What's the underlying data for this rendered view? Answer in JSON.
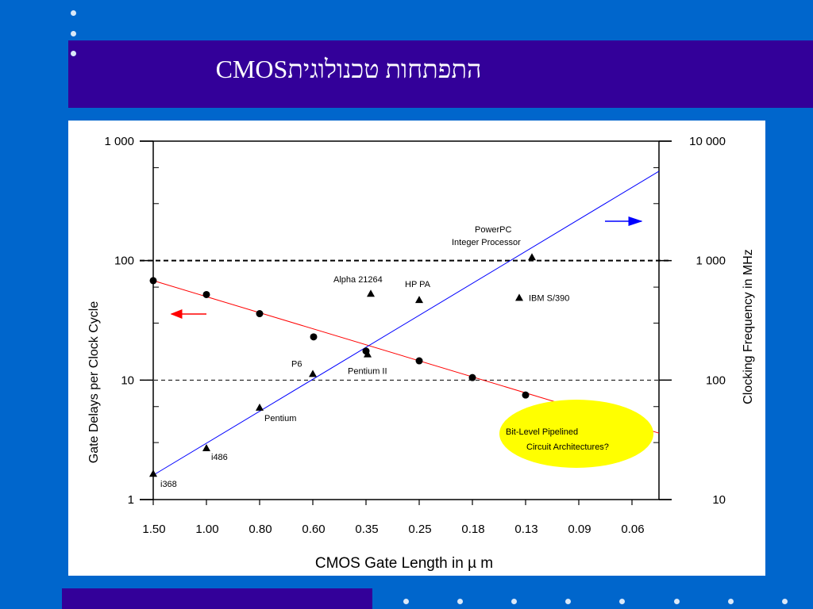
{
  "slide": {
    "title": "התפתחות טכנולוגיתCMOS",
    "colors": {
      "background": "#0066cc",
      "title_band": "#330099",
      "title_text": "#ffffff",
      "panel": "#ffffff"
    }
  },
  "chart_data": {
    "type": "scatter",
    "title": "",
    "xlabel": "CMOS Gate Length  in µ m",
    "ylabel": "Gate Delays per Clock Cycle",
    "y2label": "Clocking Frequency in MHz",
    "x_categories": [
      "1.50",
      "1.00",
      "0.80",
      "0.60",
      "0.35",
      "0.25",
      "0.18",
      "0.13",
      "0.09",
      "0.06"
    ],
    "y_scale": "log",
    "ylim": [
      1,
      1000
    ],
    "y_ticks": [
      "1",
      "10",
      "100",
      "1 000"
    ],
    "y2_scale": "log",
    "y2lim": [
      10,
      10000
    ],
    "y2_ticks": [
      "10",
      "100",
      "1 000",
      "10 000"
    ],
    "grid": false,
    "reference_lines": [
      {
        "axis": "y",
        "value": 100,
        "style": "dashed-bold"
      },
      {
        "axis": "y",
        "value": 10,
        "style": "dashed"
      }
    ],
    "series": [
      {
        "marker": "circle",
        "axis": "left",
        "color": "#000000",
        "points": [
          {
            "x": "1.50",
            "y": 68
          },
          {
            "x": "1.00",
            "y": 52
          },
          {
            "x": "0.80",
            "y": 36
          },
          {
            "x": "0.60",
            "y": 23
          },
          {
            "x": "0.35",
            "y": 17.5
          },
          {
            "x": "0.25",
            "y": 14.5
          },
          {
            "x": "0.18",
            "y": 10.5
          },
          {
            "x": "0.13",
            "y": 7.5
          }
        ]
      },
      {
        "marker": "triangle",
        "axis": "right",
        "color": "#000000",
        "points": [
          {
            "x": "1.50",
            "y": 16.5,
            "label": "i368"
          },
          {
            "x": "1.00",
            "y": 27,
            "label": "i486"
          },
          {
            "x": "0.80",
            "y": 59,
            "label": "Pentium"
          },
          {
            "x": "0.60",
            "y": 113,
            "label": "P6"
          },
          {
            "x": "0.35",
            "y": 165,
            "label": "Pentium II"
          },
          {
            "x": "0.35",
            "y": 530,
            "label": "Alpha 21264"
          },
          {
            "x": "0.25",
            "y": 470,
            "label": "HP PA"
          },
          {
            "x": "0.13",
            "y": 1070,
            "label": "PowerPC\nInteger Processor"
          },
          {
            "x": "0.13",
            "y": 490,
            "label": "IBM S/390"
          }
        ]
      }
    ],
    "trend_lines": [
      {
        "color": "#ff0000",
        "axis": "left",
        "from": {
          "x": "1.50",
          "y": 68
        },
        "to_end_y": 3.6
      },
      {
        "color": "#0000ff",
        "axis": "right",
        "from": {
          "x": "1.50",
          "y": 16
        },
        "to_end_y": 5600
      }
    ],
    "arrows": [
      {
        "direction": "left",
        "color": "#ff0000",
        "meaning": "left axis"
      },
      {
        "direction": "right",
        "color": "#0000ff",
        "meaning": "right axis"
      }
    ],
    "callout": {
      "line1": "Bit-Level Pipelined",
      "line2": "Circuit Architectures?",
      "color": "#ffff00"
    }
  }
}
